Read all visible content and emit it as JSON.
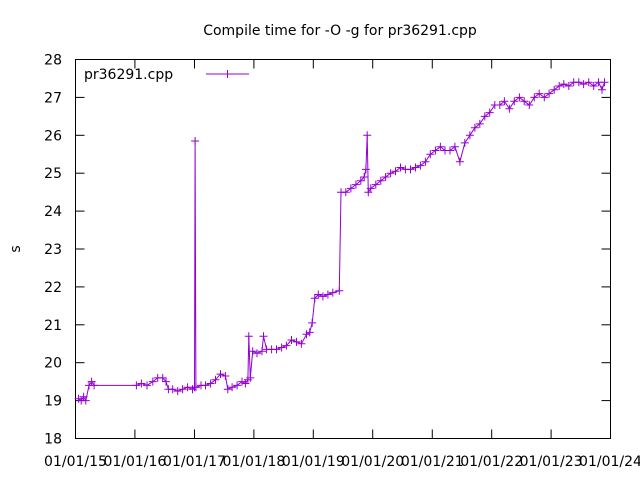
{
  "chart_data": {
    "type": "line",
    "title": "Compile time for -O -g for pr36291.cpp",
    "xlabel": "",
    "ylabel": "s",
    "ylim": [
      18,
      28
    ],
    "xlim": [
      "2015-01-01",
      "2024-01-01"
    ],
    "grid": false,
    "legend_position": "top-left",
    "x_tick_labels": [
      "01/01/15",
      "01/01/16",
      "01/01/17",
      "01/01/18",
      "01/01/19",
      "01/01/20",
      "01/01/21",
      "01/01/22",
      "01/01/23",
      "01/01/24"
    ],
    "y_tick_labels": [
      "18",
      "19",
      "20",
      "21",
      "22",
      "23",
      "24",
      "25",
      "26",
      "27",
      "28"
    ],
    "series": [
      {
        "name": "pr36291.cpp",
        "color": "#9400d3",
        "marker": "plus",
        "points": [
          [
            "2015-01-20",
            19.05
          ],
          [
            "2015-02-05",
            19.0
          ],
          [
            "2015-02-20",
            19.1
          ],
          [
            "2015-03-05",
            19.0
          ],
          [
            "2015-03-25",
            19.4
          ],
          [
            "2015-04-10",
            19.5
          ],
          [
            "2015-04-25",
            19.4
          ],
          [
            "2016-01-10",
            19.4
          ],
          [
            "2016-02-10",
            19.45
          ],
          [
            "2016-03-15",
            19.4
          ],
          [
            "2016-04-20",
            19.5
          ],
          [
            "2016-05-20",
            19.6
          ],
          [
            "2016-06-20",
            19.6
          ],
          [
            "2016-07-10",
            19.5
          ],
          [
            "2016-07-25",
            19.3
          ],
          [
            "2016-08-20",
            19.3
          ],
          [
            "2016-09-20",
            19.25
          ],
          [
            "2016-10-20",
            19.3
          ],
          [
            "2016-11-20",
            19.35
          ],
          [
            "2016-12-20",
            19.3
          ],
          [
            "2017-01-01",
            19.35
          ],
          [
            "2017-01-05",
            25.85
          ],
          [
            "2017-01-10",
            19.35
          ],
          [
            "2017-02-10",
            19.4
          ],
          [
            "2017-03-10",
            19.4
          ],
          [
            "2017-04-10",
            19.45
          ],
          [
            "2017-05-10",
            19.55
          ],
          [
            "2017-06-10",
            19.7
          ],
          [
            "2017-07-10",
            19.65
          ],
          [
            "2017-07-25",
            19.3
          ],
          [
            "2017-08-20",
            19.35
          ],
          [
            "2017-09-20",
            19.4
          ],
          [
            "2017-10-20",
            19.5
          ],
          [
            "2017-11-10",
            19.45
          ],
          [
            "2017-11-25",
            19.55
          ],
          [
            "2017-12-01",
            20.7
          ],
          [
            "2017-12-10",
            19.6
          ],
          [
            "2017-12-25",
            20.3
          ],
          [
            "2018-01-20",
            20.25
          ],
          [
            "2018-02-20",
            20.3
          ],
          [
            "2018-03-01",
            20.7
          ],
          [
            "2018-03-20",
            20.35
          ],
          [
            "2018-04-20",
            20.35
          ],
          [
            "2018-05-20",
            20.35
          ],
          [
            "2018-06-20",
            20.4
          ],
          [
            "2018-07-20",
            20.45
          ],
          [
            "2018-08-20",
            20.6
          ],
          [
            "2018-09-20",
            20.55
          ],
          [
            "2018-10-20",
            20.5
          ],
          [
            "2018-11-20",
            20.75
          ],
          [
            "2018-12-10",
            20.8
          ],
          [
            "2018-12-25",
            21.05
          ],
          [
            "2019-01-10",
            21.7
          ],
          [
            "2019-02-01",
            21.8
          ],
          [
            "2019-03-01",
            21.75
          ],
          [
            "2019-04-01",
            21.8
          ],
          [
            "2019-05-01",
            21.85
          ],
          [
            "2019-06-10",
            21.9
          ],
          [
            "2019-06-20",
            24.5
          ],
          [
            "2019-07-20",
            24.5
          ],
          [
            "2019-08-20",
            24.6
          ],
          [
            "2019-09-20",
            24.7
          ],
          [
            "2019-10-20",
            24.8
          ],
          [
            "2019-11-10",
            24.9
          ],
          [
            "2019-11-20",
            25.1
          ],
          [
            "2019-11-28",
            26.0
          ],
          [
            "2019-12-05",
            24.5
          ],
          [
            "2019-12-20",
            24.6
          ],
          [
            "2020-01-20",
            24.7
          ],
          [
            "2020-02-20",
            24.8
          ],
          [
            "2020-03-20",
            24.9
          ],
          [
            "2020-04-20",
            25.0
          ],
          [
            "2020-05-20",
            25.05
          ],
          [
            "2020-06-20",
            25.15
          ],
          [
            "2020-07-20",
            25.1
          ],
          [
            "2020-08-20",
            25.1
          ],
          [
            "2020-09-20",
            25.15
          ],
          [
            "2020-10-20",
            25.2
          ],
          [
            "2020-11-20",
            25.3
          ],
          [
            "2020-12-20",
            25.5
          ],
          [
            "2021-01-20",
            25.6
          ],
          [
            "2021-02-20",
            25.7
          ],
          [
            "2021-03-20",
            25.6
          ],
          [
            "2021-04-20",
            25.6
          ],
          [
            "2021-05-20",
            25.7
          ],
          [
            "2021-06-20",
            25.3
          ],
          [
            "2021-07-20",
            25.8
          ],
          [
            "2021-08-20",
            26.0
          ],
          [
            "2021-09-20",
            26.2
          ],
          [
            "2021-10-20",
            26.3
          ],
          [
            "2021-11-20",
            26.5
          ],
          [
            "2021-12-20",
            26.6
          ],
          [
            "2022-01-20",
            26.8
          ],
          [
            "2022-02-20",
            26.8
          ],
          [
            "2022-03-20",
            26.9
          ],
          [
            "2022-04-20",
            26.7
          ],
          [
            "2022-05-20",
            26.9
          ],
          [
            "2022-06-20",
            27.0
          ],
          [
            "2022-07-20",
            26.9
          ],
          [
            "2022-08-20",
            26.8
          ],
          [
            "2022-09-20",
            27.0
          ],
          [
            "2022-10-20",
            27.1
          ],
          [
            "2022-11-20",
            27.0
          ],
          [
            "2022-12-20",
            27.1
          ],
          [
            "2023-01-20",
            27.2
          ],
          [
            "2023-02-20",
            27.3
          ],
          [
            "2023-03-20",
            27.35
          ],
          [
            "2023-04-20",
            27.3
          ],
          [
            "2023-05-20",
            27.4
          ],
          [
            "2023-06-20",
            27.4
          ],
          [
            "2023-07-20",
            27.35
          ],
          [
            "2023-08-20",
            27.4
          ],
          [
            "2023-09-20",
            27.3
          ],
          [
            "2023-10-20",
            27.4
          ],
          [
            "2023-11-10",
            27.2
          ],
          [
            "2023-11-25",
            27.4
          ]
        ]
      }
    ]
  }
}
